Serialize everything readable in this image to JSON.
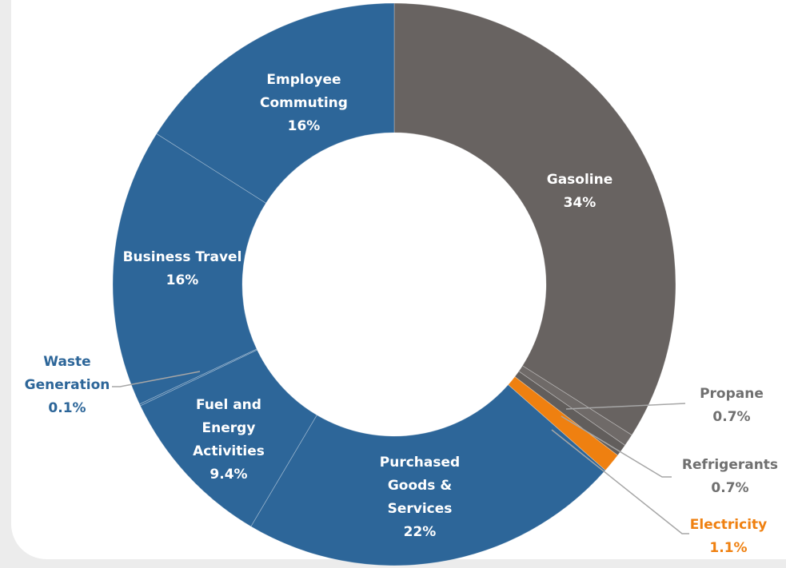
{
  "chart_data": {
    "type": "pie",
    "categories": [
      "Gasoline",
      "Propane",
      "Refrigerants",
      "Electricity",
      "Purchased Goods & Services",
      "Fuel and Energy Activities",
      "Waste Generation",
      "Business Travel",
      "Employee Commuting"
    ],
    "values": [
      34,
      0.7,
      0.7,
      1.1,
      22,
      9.4,
      0.1,
      16,
      16
    ],
    "value_labels": [
      "34%",
      "0.7%",
      "0.7%",
      "1.1%",
      "22%",
      "9.4%",
      "0.1%",
      "16%",
      "16%"
    ],
    "colors": [
      "#686361",
      "#6f6a68",
      "#625e5c",
      "#ef8010",
      "#2d6699",
      "#2d6699",
      "#2d6699",
      "#2d6699",
      "#2d6699"
    ]
  }
}
